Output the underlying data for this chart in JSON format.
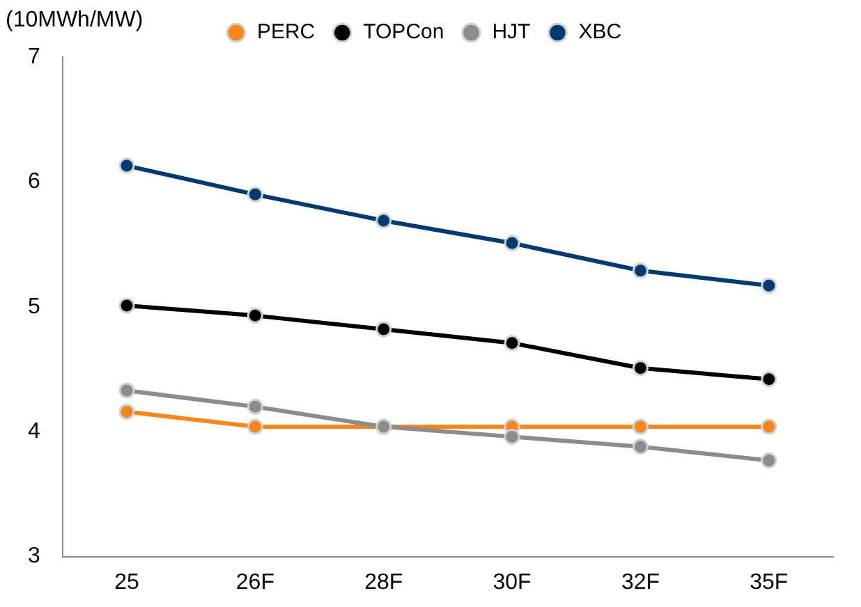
{
  "chart_data": {
    "type": "line",
    "ylabel": "(10MWh/MW)",
    "categories": [
      "25",
      "26F",
      "28F",
      "30F",
      "32F",
      "35F"
    ],
    "series": [
      {
        "name": "PERC",
        "color": "#f7861c",
        "values": [
          4.16,
          4.04,
          4.04,
          4.04,
          4.04,
          4.04
        ]
      },
      {
        "name": "TOPCon",
        "color": "#000000",
        "values": [
          5.01,
          4.93,
          4.82,
          4.71,
          4.51,
          4.42
        ]
      },
      {
        "name": "HJT",
        "color": "#8c8c8c",
        "values": [
          4.33,
          4.2,
          4.04,
          3.96,
          3.88,
          3.77
        ]
      },
      {
        "name": "XBC",
        "color": "#003a70",
        "values": [
          6.13,
          5.9,
          5.69,
          5.51,
          5.29,
          5.17
        ]
      }
    ],
    "ylim": [
      3,
      7
    ],
    "yticks": [
      3,
      4,
      5,
      6,
      7
    ],
    "grid": false,
    "legend": "top",
    "marker": "circle",
    "line_style": "solid"
  }
}
